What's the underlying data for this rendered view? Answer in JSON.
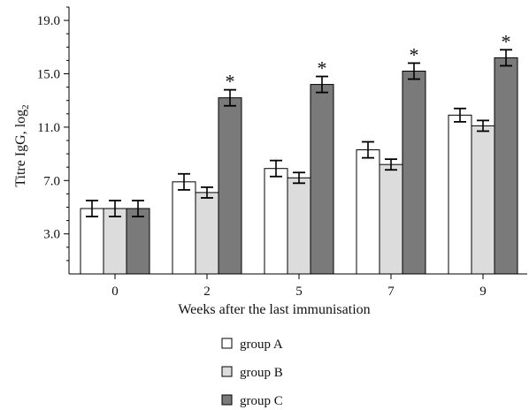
{
  "chart_data": {
    "type": "bar",
    "xlabel": "Weeks after the last immunisation",
    "ylabel": "Titre IgG, log",
    "ylabel_sub": "2",
    "ylim": [
      0,
      20
    ],
    "yticks": [
      "3.0",
      "7.0",
      "11.0",
      "15.0",
      "19.0"
    ],
    "categories": [
      "0",
      "2",
      "5",
      "7",
      "9"
    ],
    "series": [
      {
        "name": "group A",
        "color": "#ffffff",
        "values": [
          4.9,
          6.9,
          7.9,
          9.3,
          11.9
        ],
        "errors": [
          0.6,
          0.6,
          0.6,
          0.6,
          0.5
        ]
      },
      {
        "name": "group B",
        "color": "#dcdcdc",
        "values": [
          4.9,
          6.1,
          7.2,
          8.2,
          11.1
        ],
        "errors": [
          0.6,
          0.4,
          0.4,
          0.4,
          0.4
        ]
      },
      {
        "name": "group C",
        "color": "#7a7a7a",
        "values": [
          4.9,
          13.2,
          14.2,
          15.2,
          16.2
        ],
        "errors": [
          0.6,
          0.6,
          0.6,
          0.6,
          0.6
        ]
      }
    ],
    "annotations": [
      {
        "category": "2",
        "series": "group C",
        "text": "*"
      },
      {
        "category": "5",
        "series": "group C",
        "text": "*"
      },
      {
        "category": "7",
        "series": "group C",
        "text": "*"
      },
      {
        "category": "9",
        "series": "group C",
        "text": "*"
      }
    ],
    "legend_position": "bottom-center",
    "grid": false
  }
}
